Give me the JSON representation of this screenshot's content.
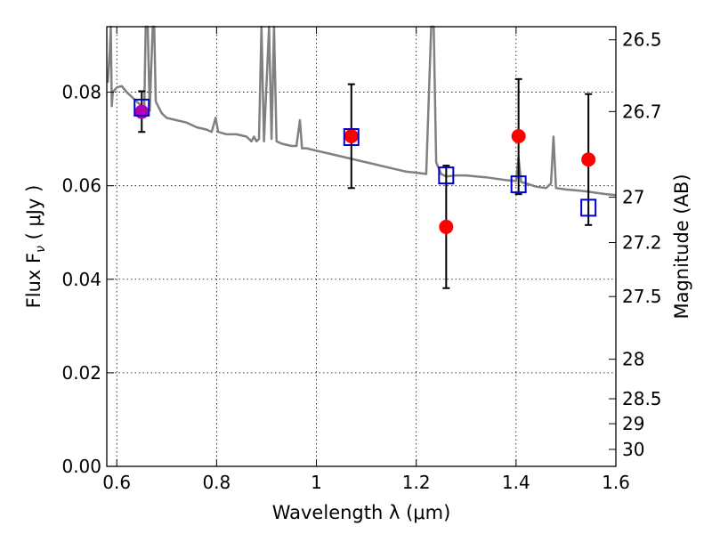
{
  "chart_data": {
    "type": "scatter",
    "xlabel": "Wavelength  λ (μm)",
    "ylabel": "Flux  F",
    "ylabel_sub": "ν",
    "ylabel_tail": " (  μJy  )",
    "ylabel_right": "Magnitude (AB)",
    "xlim": [
      0.58,
      1.6
    ],
    "ylim": [
      0.0,
      0.094
    ],
    "grid": true,
    "x_ticks": [
      {
        "value": 0.6,
        "label": "0.6"
      },
      {
        "value": 0.8,
        "label": "0.8"
      },
      {
        "value": 1.0,
        "label": "1"
      },
      {
        "value": 1.2,
        "label": "1.2"
      },
      {
        "value": 1.4,
        "label": "1.4"
      },
      {
        "value": 1.6,
        "label": "1.6"
      }
    ],
    "y_ticks": [
      {
        "value": 0.0,
        "label": "0.00"
      },
      {
        "value": 0.02,
        "label": "0.02"
      },
      {
        "value": 0.04,
        "label": "0.04"
      },
      {
        "value": 0.06,
        "label": "0.06"
      },
      {
        "value": 0.08,
        "label": "0.08"
      }
    ],
    "mag_ticks": [
      {
        "mag": 26.5,
        "label": "26.5"
      },
      {
        "mag": 26.7,
        "label": "26.7"
      },
      {
        "mag": 27.0,
        "label": "27"
      },
      {
        "mag": 27.2,
        "label": "27.2"
      },
      {
        "mag": 27.5,
        "label": "27.5"
      },
      {
        "mag": 28.0,
        "label": "28"
      },
      {
        "mag": 28.5,
        "label": "28.5"
      },
      {
        "mag": 29.0,
        "label": "29"
      },
      {
        "mag": 30.0,
        "label": "30"
      }
    ],
    "colors": {
      "spectrum": "#808080",
      "observed": "#ff0000",
      "observed_overlap": "#b000b0",
      "model": "#0000cc",
      "errorbar": "#000000"
    },
    "spectrum": [
      [
        0.582,
        0.082
      ],
      [
        0.586,
        0.089
      ],
      [
        0.588,
        0.094
      ],
      [
        0.59,
        0.077
      ],
      [
        0.592,
        0.08
      ],
      [
        0.6,
        0.081
      ],
      [
        0.61,
        0.0813
      ],
      [
        0.62,
        0.08
      ],
      [
        0.63,
        0.079
      ],
      [
        0.64,
        0.078
      ],
      [
        0.645,
        0.0775
      ],
      [
        0.65,
        0.077
      ],
      [
        0.655,
        0.0765
      ],
      [
        0.658,
        0.094
      ],
      [
        0.662,
        0.094
      ],
      [
        0.666,
        0.076
      ],
      [
        0.672,
        0.094
      ],
      [
        0.675,
        0.094
      ],
      [
        0.678,
        0.078
      ],
      [
        0.69,
        0.0755
      ],
      [
        0.7,
        0.0745
      ],
      [
        0.72,
        0.074
      ],
      [
        0.74,
        0.0735
      ],
      [
        0.76,
        0.0725
      ],
      [
        0.78,
        0.072
      ],
      [
        0.79,
        0.0715
      ],
      [
        0.798,
        0.0745
      ],
      [
        0.803,
        0.0715
      ],
      [
        0.82,
        0.071
      ],
      [
        0.84,
        0.071
      ],
      [
        0.86,
        0.0705
      ],
      [
        0.87,
        0.0695
      ],
      [
        0.875,
        0.0705
      ],
      [
        0.88,
        0.0695
      ],
      [
        0.885,
        0.07
      ],
      [
        0.89,
        0.094
      ],
      [
        0.895,
        0.0695
      ],
      [
        0.905,
        0.094
      ],
      [
        0.91,
        0.07
      ],
      [
        0.915,
        0.094
      ],
      [
        0.92,
        0.0695
      ],
      [
        0.93,
        0.069
      ],
      [
        0.95,
        0.0685
      ],
      [
        0.96,
        0.0685
      ],
      [
        0.967,
        0.074
      ],
      [
        0.971,
        0.068
      ],
      [
        0.98,
        0.068
      ],
      [
        1.0,
        0.0675
      ],
      [
        1.02,
        0.067
      ],
      [
        1.04,
        0.0665
      ],
      [
        1.06,
        0.066
      ],
      [
        1.08,
        0.0655
      ],
      [
        1.1,
        0.065
      ],
      [
        1.12,
        0.0645
      ],
      [
        1.14,
        0.064
      ],
      [
        1.16,
        0.0635
      ],
      [
        1.18,
        0.063
      ],
      [
        1.2,
        0.0628
      ],
      [
        1.22,
        0.0625
      ],
      [
        1.23,
        0.094
      ],
      [
        1.235,
        0.094
      ],
      [
        1.24,
        0.065
      ],
      [
        1.25,
        0.0625
      ],
      [
        1.26,
        0.062
      ],
      [
        1.28,
        0.0622
      ],
      [
        1.3,
        0.0622
      ],
      [
        1.32,
        0.062
      ],
      [
        1.34,
        0.0618
      ],
      [
        1.36,
        0.0615
      ],
      [
        1.38,
        0.0612
      ],
      [
        1.4,
        0.061
      ],
      [
        1.405,
        0.066
      ],
      [
        1.41,
        0.0608
      ],
      [
        1.42,
        0.0605
      ],
      [
        1.44,
        0.0598
      ],
      [
        1.46,
        0.0595
      ],
      [
        1.47,
        0.0605
      ],
      [
        1.475,
        0.0705
      ],
      [
        1.48,
        0.0595
      ],
      [
        1.5,
        0.0592
      ],
      [
        1.52,
        0.059
      ],
      [
        1.54,
        0.0588
      ],
      [
        1.56,
        0.0585
      ],
      [
        1.58,
        0.0582
      ],
      [
        1.6,
        0.058
      ]
    ],
    "observed_points": [
      {
        "x": 0.65,
        "y": 0.0758,
        "yerr_low": 0.0715,
        "yerr_high": 0.0802
      },
      {
        "x": 1.07,
        "y": 0.0706,
        "yerr_low": 0.0595,
        "yerr_high": 0.0817
      },
      {
        "x": 1.26,
        "y": 0.0512,
        "yerr_low": 0.0381,
        "yerr_high": 0.0643
      },
      {
        "x": 1.405,
        "y": 0.0706,
        "yerr_low": 0.0582,
        "yerr_high": 0.0828
      },
      {
        "x": 1.545,
        "y": 0.0656,
        "yerr_low": 0.0516,
        "yerr_high": 0.0796
      }
    ],
    "model_points": [
      {
        "x": 0.65,
        "y": 0.0767
      },
      {
        "x": 1.07,
        "y": 0.0704
      },
      {
        "x": 1.26,
        "y": 0.0622
      },
      {
        "x": 1.405,
        "y": 0.0603
      },
      {
        "x": 1.545,
        "y": 0.0553
      }
    ]
  }
}
